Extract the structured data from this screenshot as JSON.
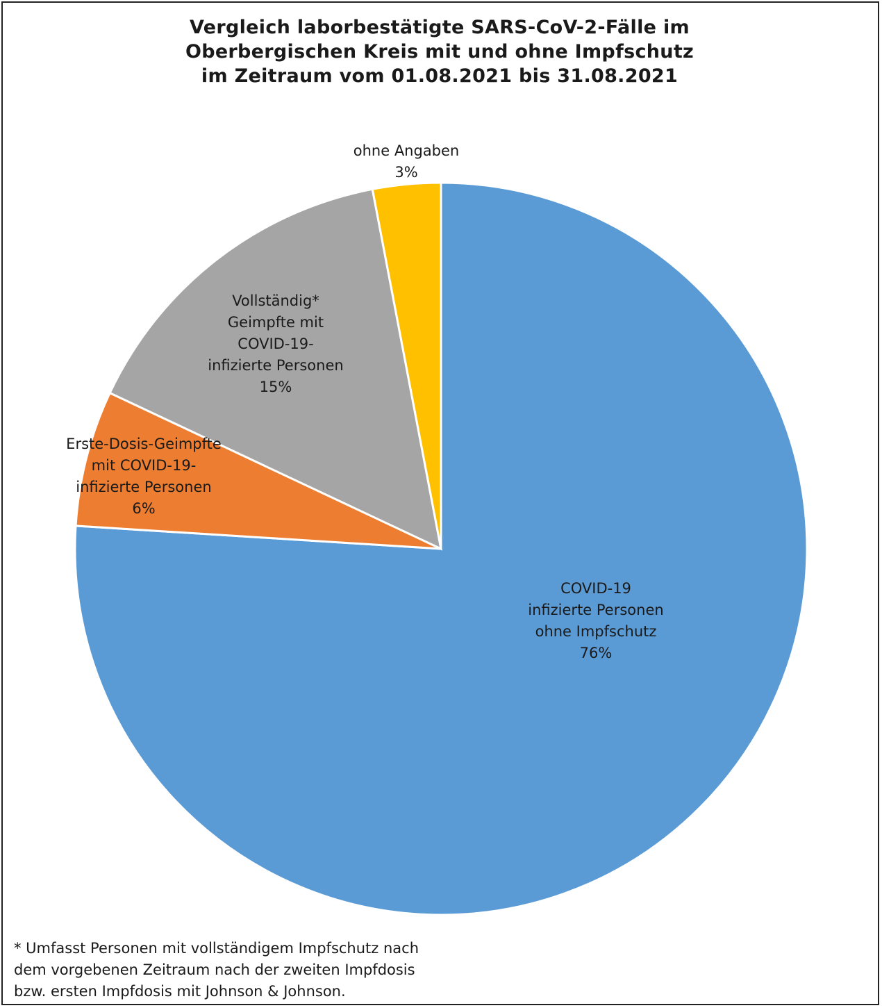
{
  "chart_data": {
    "type": "pie",
    "title": [
      "Vergleich laborbestätigte SARS-CoV-2-Fälle im",
      "Oberbergischen Kreis mit und ohne Impfschutz",
      "im Zeitraum vom 01.08.2021 bis 31.08.2021"
    ],
    "slices": [
      {
        "label_lines": [
          "COVID-19",
          "infizierte Personen",
          "ohne Impfschutz",
          "76%"
        ],
        "value": 76,
        "color": "#5B9BD5"
      },
      {
        "label_lines": [
          "Erste-Dosis-Geimpfte",
          "mit COVID-19-",
          "infizierte Personen",
          "6%"
        ],
        "value": 6,
        "color": "#ED7D31"
      },
      {
        "label_lines": [
          "Vollständig*",
          "Geimpfte mit",
          "COVID-19-",
          "infizierte Personen",
          "15%"
        ],
        "value": 15,
        "color": "#A5A5A5"
      },
      {
        "label_lines": [
          "ohne Angaben",
          "3%"
        ],
        "value": 3,
        "color": "#FFC000"
      }
    ]
  },
  "footnote": [
    "* Umfasst Personen mit vollständigem Impfschutz nach",
    "dem vorgebenen Zeitraum nach der zweiten Impfdosis",
    "bzw. ersten Impfdosis mit Johnson & Johnson."
  ]
}
